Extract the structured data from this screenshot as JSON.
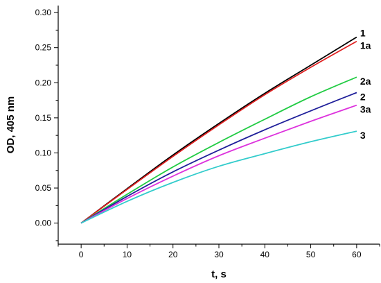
{
  "chart_data": {
    "type": "line",
    "title": "",
    "xlabel": "t, s",
    "ylabel": "OD, 405 nm",
    "xlim": [
      -5,
      65
    ],
    "ylim": [
      -0.03,
      0.31
    ],
    "xticks": [
      0,
      10,
      20,
      30,
      40,
      50,
      60
    ],
    "xtick_labels": [
      "0",
      "10",
      "20",
      "30",
      "40",
      "50",
      "60"
    ],
    "yticks": [
      0.0,
      0.05,
      0.1,
      0.15,
      0.2,
      0.25,
      0.3
    ],
    "ytick_labels": [
      "0.00",
      "0.05",
      "0.10",
      "0.15",
      "0.20",
      "0.25",
      "0.30"
    ],
    "grid": false,
    "x": [
      0,
      10,
      20,
      30,
      40,
      50,
      60
    ],
    "series": [
      {
        "name": "1",
        "color": "#000000",
        "values": [
          0,
          0.049,
          0.097,
          0.142,
          0.185,
          0.225,
          0.265
        ]
      },
      {
        "name": "1a",
        "color": "#e02020",
        "values": [
          0,
          0.048,
          0.095,
          0.14,
          0.183,
          0.222,
          0.259
        ]
      },
      {
        "name": "2a",
        "color": "#22cc44",
        "values": [
          0,
          0.041,
          0.08,
          0.115,
          0.148,
          0.18,
          0.208
        ]
      },
      {
        "name": "2",
        "color": "#1f1f9a",
        "values": [
          0,
          0.038,
          0.073,
          0.104,
          0.133,
          0.16,
          0.186
        ]
      },
      {
        "name": "3a",
        "color": "#dd33dd",
        "values": [
          0,
          0.035,
          0.067,
          0.096,
          0.121,
          0.145,
          0.168
        ]
      },
      {
        "name": "3",
        "color": "#33cccc",
        "values": [
          0,
          0.031,
          0.058,
          0.081,
          0.099,
          0.116,
          0.131
        ]
      }
    ]
  }
}
